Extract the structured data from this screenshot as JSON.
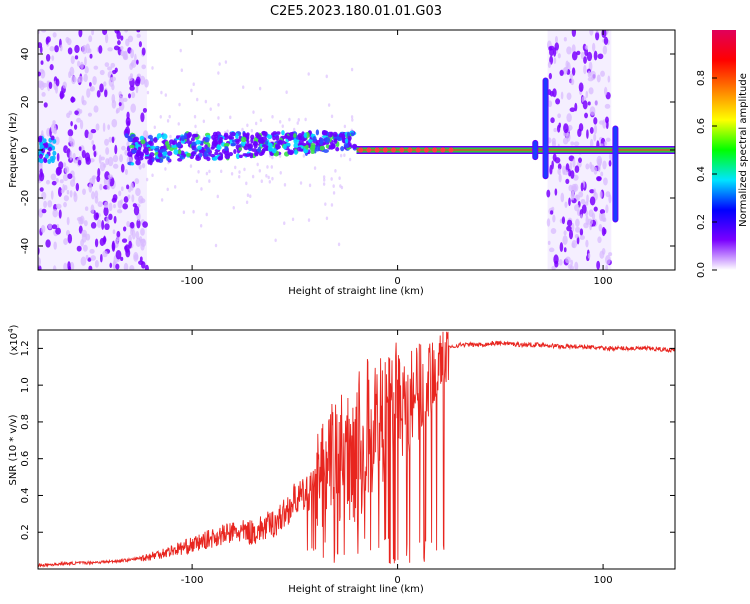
{
  "title": "C2E5.2023.180.01.01.G03",
  "colors": {
    "snr_line": "#e8251f",
    "signal_line_fill": "#2ec93a",
    "signal_line_border": "#6a00ff",
    "scatter_purple": "#7a00ff",
    "scatter_light": "#d7b8ff"
  },
  "chart_data": [
    {
      "type": "heatmap",
      "name": "spectrogram",
      "xlabel": "Height of straight line (km)",
      "ylabel": "Frequency (Hz)",
      "xlim": [
        -175,
        135
      ],
      "ylim": [
        -50,
        50
      ],
      "x_ticks": [
        -100,
        0,
        100
      ],
      "x_tick_labels": [
        "-100",
        "0",
        "100"
      ],
      "y_ticks": [
        -40,
        -20,
        0,
        20,
        40
      ],
      "y_tick_labels": [
        "-40",
        "-20",
        "0",
        "20",
        "40"
      ],
      "colorbar": {
        "label": "Normalized spectral amplitude",
        "range": [
          0.0,
          1.0
        ],
        "ticks": [
          0.0,
          0.2,
          0.4,
          0.6,
          0.8
        ],
        "tick_labels": [
          "0.0",
          "0.2",
          "0.4",
          "0.6",
          "0.8"
        ],
        "colormap": [
          "#ffffff",
          "#7a00ff",
          "#0000ff",
          "#00e5ff",
          "#00ff00",
          "#ffff00",
          "#ff8000",
          "#ff0000",
          "#e0005a"
        ]
      },
      "features": {
        "steady_tone_frequency_hz": 0,
        "steady_tone_x_range": [
          -20,
          135
        ],
        "noise_band_regions": [
          [
            -175,
            -122
          ],
          [
            73,
            104
          ]
        ],
        "noise_band_frequency_range": [
          -50,
          50
        ]
      }
    },
    {
      "type": "line",
      "name": "snr",
      "xlabel": "Height of straight line (km)",
      "ylabel": "SNR (10 * v/v)",
      "y_multiplier_label": "(x10",
      "y_multiplier_exp": "4",
      "xlim": [
        -175,
        135
      ],
      "ylim": [
        0.0,
        1.3
      ],
      "x_ticks": [
        -100,
        0,
        100
      ],
      "x_tick_labels": [
        "-100",
        "0",
        "100"
      ],
      "y_ticks": [
        0.2,
        0.4,
        0.6,
        0.8,
        1.0,
        1.2
      ],
      "y_tick_labels": [
        "0.2",
        "0.4",
        "0.6",
        "0.8",
        "1.0",
        "1.2"
      ],
      "series": [
        {
          "x": [
            -175,
            -160,
            -140,
            -130,
            -120,
            -110,
            -100,
            -90,
            -80,
            -70,
            -60,
            -55,
            -50,
            -45,
            -40,
            -35,
            -30,
            -25,
            -20,
            -15,
            -10,
            -5,
            0,
            5,
            10,
            15,
            20,
            25,
            30,
            40,
            50,
            60,
            70,
            80,
            90,
            100,
            110,
            120,
            135
          ],
          "values": [
            0.02,
            0.03,
            0.04,
            0.05,
            0.07,
            0.1,
            0.13,
            0.17,
            0.2,
            0.2,
            0.25,
            0.3,
            0.38,
            0.4,
            0.45,
            0.55,
            0.6,
            0.62,
            0.65,
            0.72,
            0.8,
            0.85,
            0.9,
            0.92,
            0.95,
            1.05,
            1.15,
            1.2,
            1.22,
            1.22,
            1.23,
            1.22,
            1.22,
            1.21,
            1.21,
            1.2,
            1.2,
            1.2,
            1.19
          ]
        }
      ]
    }
  ]
}
